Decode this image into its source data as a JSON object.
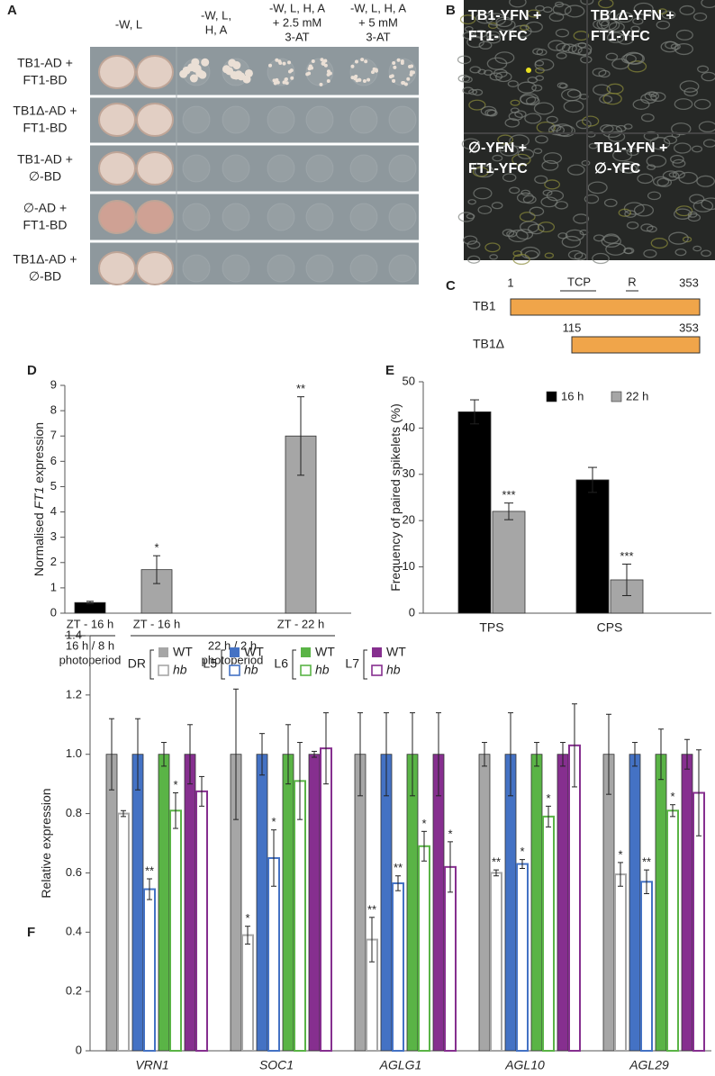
{
  "panel_labels": [
    "A",
    "B",
    "C",
    "D",
    "E",
    "F"
  ],
  "panel_a": {
    "column_headers": [
      [
        "-W, L"
      ],
      [
        "-W, L,",
        "H, A"
      ],
      [
        "-W, L, H, A",
        "+ 2.5 mM",
        "3-AT"
      ],
      [
        "-W, L, H, A",
        "+ 5 mM",
        "3-AT"
      ]
    ],
    "row_labels": [
      [
        "TB1-AD +",
        "FT1-BD"
      ],
      [
        "TB1Δ-AD +",
        "FT1-BD"
      ],
      [
        "TB1-AD +",
        "∅-BD"
      ],
      [
        "∅-AD +",
        "FT1-BD"
      ],
      [
        "TB1Δ-AD +",
        "∅-BD"
      ]
    ]
  },
  "panel_b": {
    "labels": [
      [
        "TB1-YFN +",
        "FT1-YFC"
      ],
      [
        "TB1Δ-YFN +",
        "FT1-YFC"
      ],
      [
        "∅-YFN +",
        "FT1-YFC"
      ],
      [
        "TB1-YFN +",
        "∅-YFC"
      ]
    ]
  },
  "panel_c": {
    "proteins": [
      {
        "name": "TB1",
        "start": 1,
        "end": 353
      },
      {
        "name": "TB1Δ",
        "start": 115,
        "end": 353
      }
    ],
    "domains": [
      "TCP",
      "R"
    ]
  },
  "chart_data": [
    {
      "type": "bar",
      "y_label": [
        "Normalised ",
        "FT1",
        " expression"
      ],
      "categories": [
        "ZT - 16 h",
        "ZT - 16 h",
        "ZT - 22 h"
      ],
      "values": [
        0.42,
        1.72,
        7.0
      ],
      "errors": [
        0.05,
        0.55,
        1.55
      ],
      "colors": [
        "#000000",
        "#a6a6a6",
        "#a6a6a6"
      ],
      "annotations": [
        null,
        "*",
        "**"
      ],
      "groups": [
        [
          "16 h / 8 h",
          "photoperiod"
        ],
        [
          "22 h / 2 h",
          "photoperiod"
        ]
      ],
      "ylim": [
        0,
        9
      ],
      "yticks": [
        0,
        1,
        2,
        3,
        4,
        5,
        6,
        7,
        8,
        9
      ]
    },
    {
      "type": "bar",
      "y_label": [
        "Frequency of paired spikelets (%)"
      ],
      "categories": [
        "TPS",
        "CPS"
      ],
      "series": [
        {
          "name": "16 h",
          "color": "#000000",
          "values": [
            43.5,
            28.8
          ],
          "errors": [
            2.6,
            2.7
          ],
          "annotations": [
            null,
            null
          ]
        },
        {
          "name": "22 h",
          "color": "#a6a6a6",
          "values": [
            22.0,
            7.2
          ],
          "errors": [
            1.8,
            3.4
          ],
          "annotations": [
            "***",
            "***"
          ]
        }
      ],
      "legend": "top-right",
      "ylim": [
        0,
        50
      ],
      "yticks": [
        0,
        10,
        20,
        30,
        40,
        50
      ]
    },
    {
      "type": "bar",
      "y_label": [
        "Relative expression"
      ],
      "categories": [
        "VRN1",
        "SOC1",
        "AGLG1",
        "AGL10",
        "AGL29"
      ],
      "series": [
        {
          "group": "DR",
          "name": "WT",
          "color": "#a6a6a6",
          "hollow": false,
          "values": [
            1.0,
            1.0,
            1.0,
            1.0,
            1.0
          ],
          "errors": [
            0.12,
            0.22,
            0.14,
            0.04,
            0.135
          ],
          "annotations": [
            null,
            null,
            null,
            null,
            null
          ]
        },
        {
          "group": "DR",
          "name": "hb",
          "color": "#a6a6a6",
          "hollow": true,
          "values": [
            0.8,
            0.39,
            0.375,
            0.6,
            0.595
          ],
          "errors": [
            0.01,
            0.03,
            0.075,
            0.01,
            0.04
          ],
          "annotations": [
            null,
            "*",
            "**",
            "**",
            "*"
          ]
        },
        {
          "group": "L5",
          "name": "WT",
          "color": "#4472c4",
          "hollow": false,
          "values": [
            1.0,
            1.0,
            1.0,
            1.0,
            1.0
          ],
          "errors": [
            0.12,
            0.07,
            0.14,
            0.14,
            0.04
          ],
          "annotations": [
            null,
            null,
            null,
            null,
            null
          ]
        },
        {
          "group": "L5",
          "name": "hb",
          "color": "#4472c4",
          "hollow": true,
          "values": [
            0.545,
            0.65,
            0.565,
            0.63,
            0.57
          ],
          "errors": [
            0.035,
            0.095,
            0.025,
            0.015,
            0.04
          ],
          "annotations": [
            "**",
            "*",
            "**",
            "*",
            "**"
          ]
        },
        {
          "group": "L6",
          "name": "WT",
          "color": "#5ab446",
          "hollow": false,
          "values": [
            1.0,
            1.0,
            1.0,
            1.0,
            1.0
          ],
          "errors": [
            0.04,
            0.1,
            0.14,
            0.04,
            0.085
          ],
          "annotations": [
            null,
            null,
            null,
            null,
            null
          ]
        },
        {
          "group": "L6",
          "name": "hb",
          "color": "#5ab446",
          "hollow": true,
          "values": [
            0.81,
            0.91,
            0.69,
            0.79,
            0.81
          ],
          "errors": [
            0.06,
            0.13,
            0.05,
            0.035,
            0.02
          ],
          "annotations": [
            "*",
            null,
            "*",
            "*",
            "*"
          ]
        },
        {
          "group": "L7",
          "name": "WT",
          "color": "#862f8f",
          "hollow": false,
          "values": [
            1.0,
            1.0,
            1.0,
            1.0,
            1.0
          ],
          "errors": [
            0.1,
            0.01,
            0.14,
            0.04,
            0.05
          ],
          "annotations": [
            null,
            null,
            null,
            null,
            null
          ]
        },
        {
          "group": "L7",
          "name": "hb",
          "color": "#862f8f",
          "hollow": true,
          "values": [
            0.875,
            1.02,
            0.62,
            1.03,
            0.87
          ],
          "errors": [
            0.05,
            0.12,
            0.085,
            0.14,
            0.145
          ],
          "annotations": [
            null,
            null,
            "*",
            null,
            null
          ]
        }
      ],
      "ylim": [
        0,
        1.4
      ],
      "yticks": [
        0,
        0.2,
        0.4,
        0.6,
        0.8,
        {
          "value": 1,
          "label": "1.0"
        },
        1.2,
        1.4
      ]
    }
  ]
}
